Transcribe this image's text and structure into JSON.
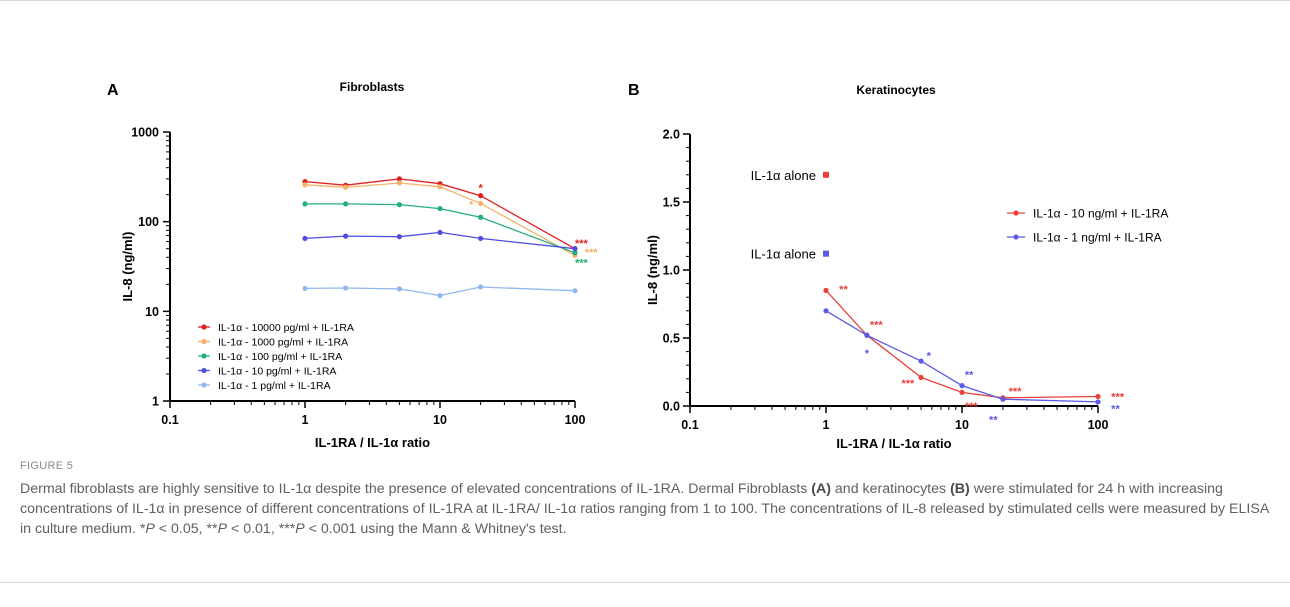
{
  "figure": {
    "label": "FIGURE 5",
    "caption": {
      "p1": "Dermal fibroblasts are highly sensitive to IL-1α despite the presence of elevated concentrations of IL-1RA. Dermal Fibroblasts ",
      "a": "(A)",
      "p2": " and keratinocytes ",
      "b": "(B)",
      "p3": " were stimulated for 24 h with increasing concentrations of IL-1α in presence of different concentrations of IL-1RA at IL-1RA/ IL-1α ratios ranging from 1 to 100. The concentrations of IL-8 released by stimulated cells were measured by ELISA in culture medium. *",
      "P1": "P",
      "p4": " < 0.05, **",
      "P2": "P",
      "p5": " < 0.01, ***",
      "P3": "P",
      "p6": " < 0.001 using the Mann & Whitney's test."
    }
  },
  "chart_data": [
    {
      "panel": "A",
      "type": "line",
      "title": "Fibroblasts",
      "xlabel": "IL-1RA / IL-1α ratio",
      "ylabel": "IL-8 (ng/ml)",
      "xscale": "log",
      "yscale": "log",
      "xlim": [
        0.1,
        100
      ],
      "ylim": [
        1,
        1000
      ],
      "xticks": [
        "0.1",
        "1",
        "10",
        "100"
      ],
      "yticks": [
        "1",
        "10",
        "100",
        "1000"
      ],
      "legend_position": "bottom-left",
      "x": [
        1,
        2,
        5,
        10,
        20,
        100
      ],
      "series": [
        {
          "name": "IL-1α - 10000 pg/ml + IL-1RA",
          "color": "#e02020",
          "values": [
            280,
            255,
            300,
            265,
            195,
            50
          ]
        },
        {
          "name": "IL-1α - 1000 pg/ml + IL-1RA",
          "color": "#f5b36b",
          "values": [
            258,
            242,
            270,
            245,
            160,
            42
          ]
        },
        {
          "name": "IL-1α - 100 pg/ml + IL-1RA",
          "color": "#22b07a",
          "values": [
            158,
            158,
            155,
            140,
            112,
            45
          ]
        },
        {
          "name": "IL-1α - 10 pg/ml + IL-1RA",
          "color": "#4d4de0",
          "values": [
            65,
            69,
            68,
            76,
            65,
            50
          ]
        },
        {
          "name": "IL-1α - 1 pg/ml + IL-1RA",
          "color": "#8fb8ec",
          "values": [
            18,
            18.2,
            17.8,
            15,
            18.7,
            17
          ]
        }
      ],
      "annotations": [
        {
          "x": 20,
          "y": 240,
          "text": "*",
          "color": "#e02020",
          "anchor": "middle"
        },
        {
          "x": 17,
          "y": 155,
          "text": "*",
          "color": "#f5b36b",
          "anchor": "middle"
        },
        {
          "x": 100,
          "y": 58,
          "text": "***",
          "color": "#e02020",
          "anchor": "start"
        },
        {
          "x": 118,
          "y": 46,
          "text": "***",
          "color": "#f5b36b",
          "anchor": "start"
        },
        {
          "x": 100,
          "y": 35,
          "text": "***",
          "color": "#22b07a",
          "anchor": "start"
        }
      ]
    },
    {
      "panel": "B",
      "type": "line",
      "title": "Keratinocytes",
      "xlabel": "IL-1RA / IL-1α ratio",
      "ylabel": "IL-8 (ng/ml)",
      "xscale": "log",
      "yscale": "linear",
      "xlim": [
        0.1,
        100
      ],
      "ylim": [
        0,
        2
      ],
      "xticks": [
        "0.1",
        "1",
        "10",
        "100"
      ],
      "yticks": [
        "0.0",
        "0.5",
        "1.0",
        "1.5",
        "2.0"
      ],
      "legend_position": "top-right",
      "x": [
        1,
        2,
        5,
        10,
        20,
        100
      ],
      "series": [
        {
          "name": "IL-1α - 10 ng/ml + IL-1RA",
          "color": "#e8403a",
          "values": [
            0.85,
            0.52,
            0.21,
            0.1,
            0.06,
            0.07
          ]
        },
        {
          "name": "IL-1α - 1 ng/ml + IL-1RA",
          "color": "#5a5ae6",
          "values": [
            0.7,
            0.52,
            0.33,
            0.15,
            0.05,
            0.03
          ]
        }
      ],
      "standalone": [
        {
          "label": "IL-1α alone",
          "x": 1,
          "y": 1.7,
          "color": "#e8403a"
        },
        {
          "label": "IL-1α alone",
          "x": 1,
          "y": 1.12,
          "color": "#5a5ae6"
        }
      ],
      "annotations": [
        {
          "x": 1.25,
          "y": 0.86,
          "text": "**",
          "color": "#e8403a",
          "anchor": "start"
        },
        {
          "x": 2.1,
          "y": 0.6,
          "text": "***",
          "color": "#e8403a",
          "anchor": "start"
        },
        {
          "x": 2,
          "y": 0.39,
          "text": "*",
          "color": "#5a5ae6",
          "anchor": "middle"
        },
        {
          "x": 5.7,
          "y": 0.37,
          "text": "*",
          "color": "#5a5ae6",
          "anchor": "middle"
        },
        {
          "x": 4,
          "y": 0.17,
          "text": "***",
          "color": "#e8403a",
          "anchor": "middle"
        },
        {
          "x": 10.5,
          "y": 0.23,
          "text": "**",
          "color": "#5a5ae6",
          "anchor": "start"
        },
        {
          "x": 10.5,
          "y": 0.0,
          "text": "***",
          "color": "#e8403a",
          "anchor": "start"
        },
        {
          "x": 22,
          "y": 0.11,
          "text": "***",
          "color": "#e8403a",
          "anchor": "start"
        },
        {
          "x": 17,
          "y": -0.1,
          "text": "**",
          "color": "#5a5ae6",
          "anchor": "middle"
        },
        {
          "x": 125,
          "y": 0.07,
          "text": "***",
          "color": "#e8403a",
          "anchor": "start"
        },
        {
          "x": 125,
          "y": -0.02,
          "text": "**",
          "color": "#5a5ae6",
          "anchor": "start"
        }
      ]
    }
  ]
}
